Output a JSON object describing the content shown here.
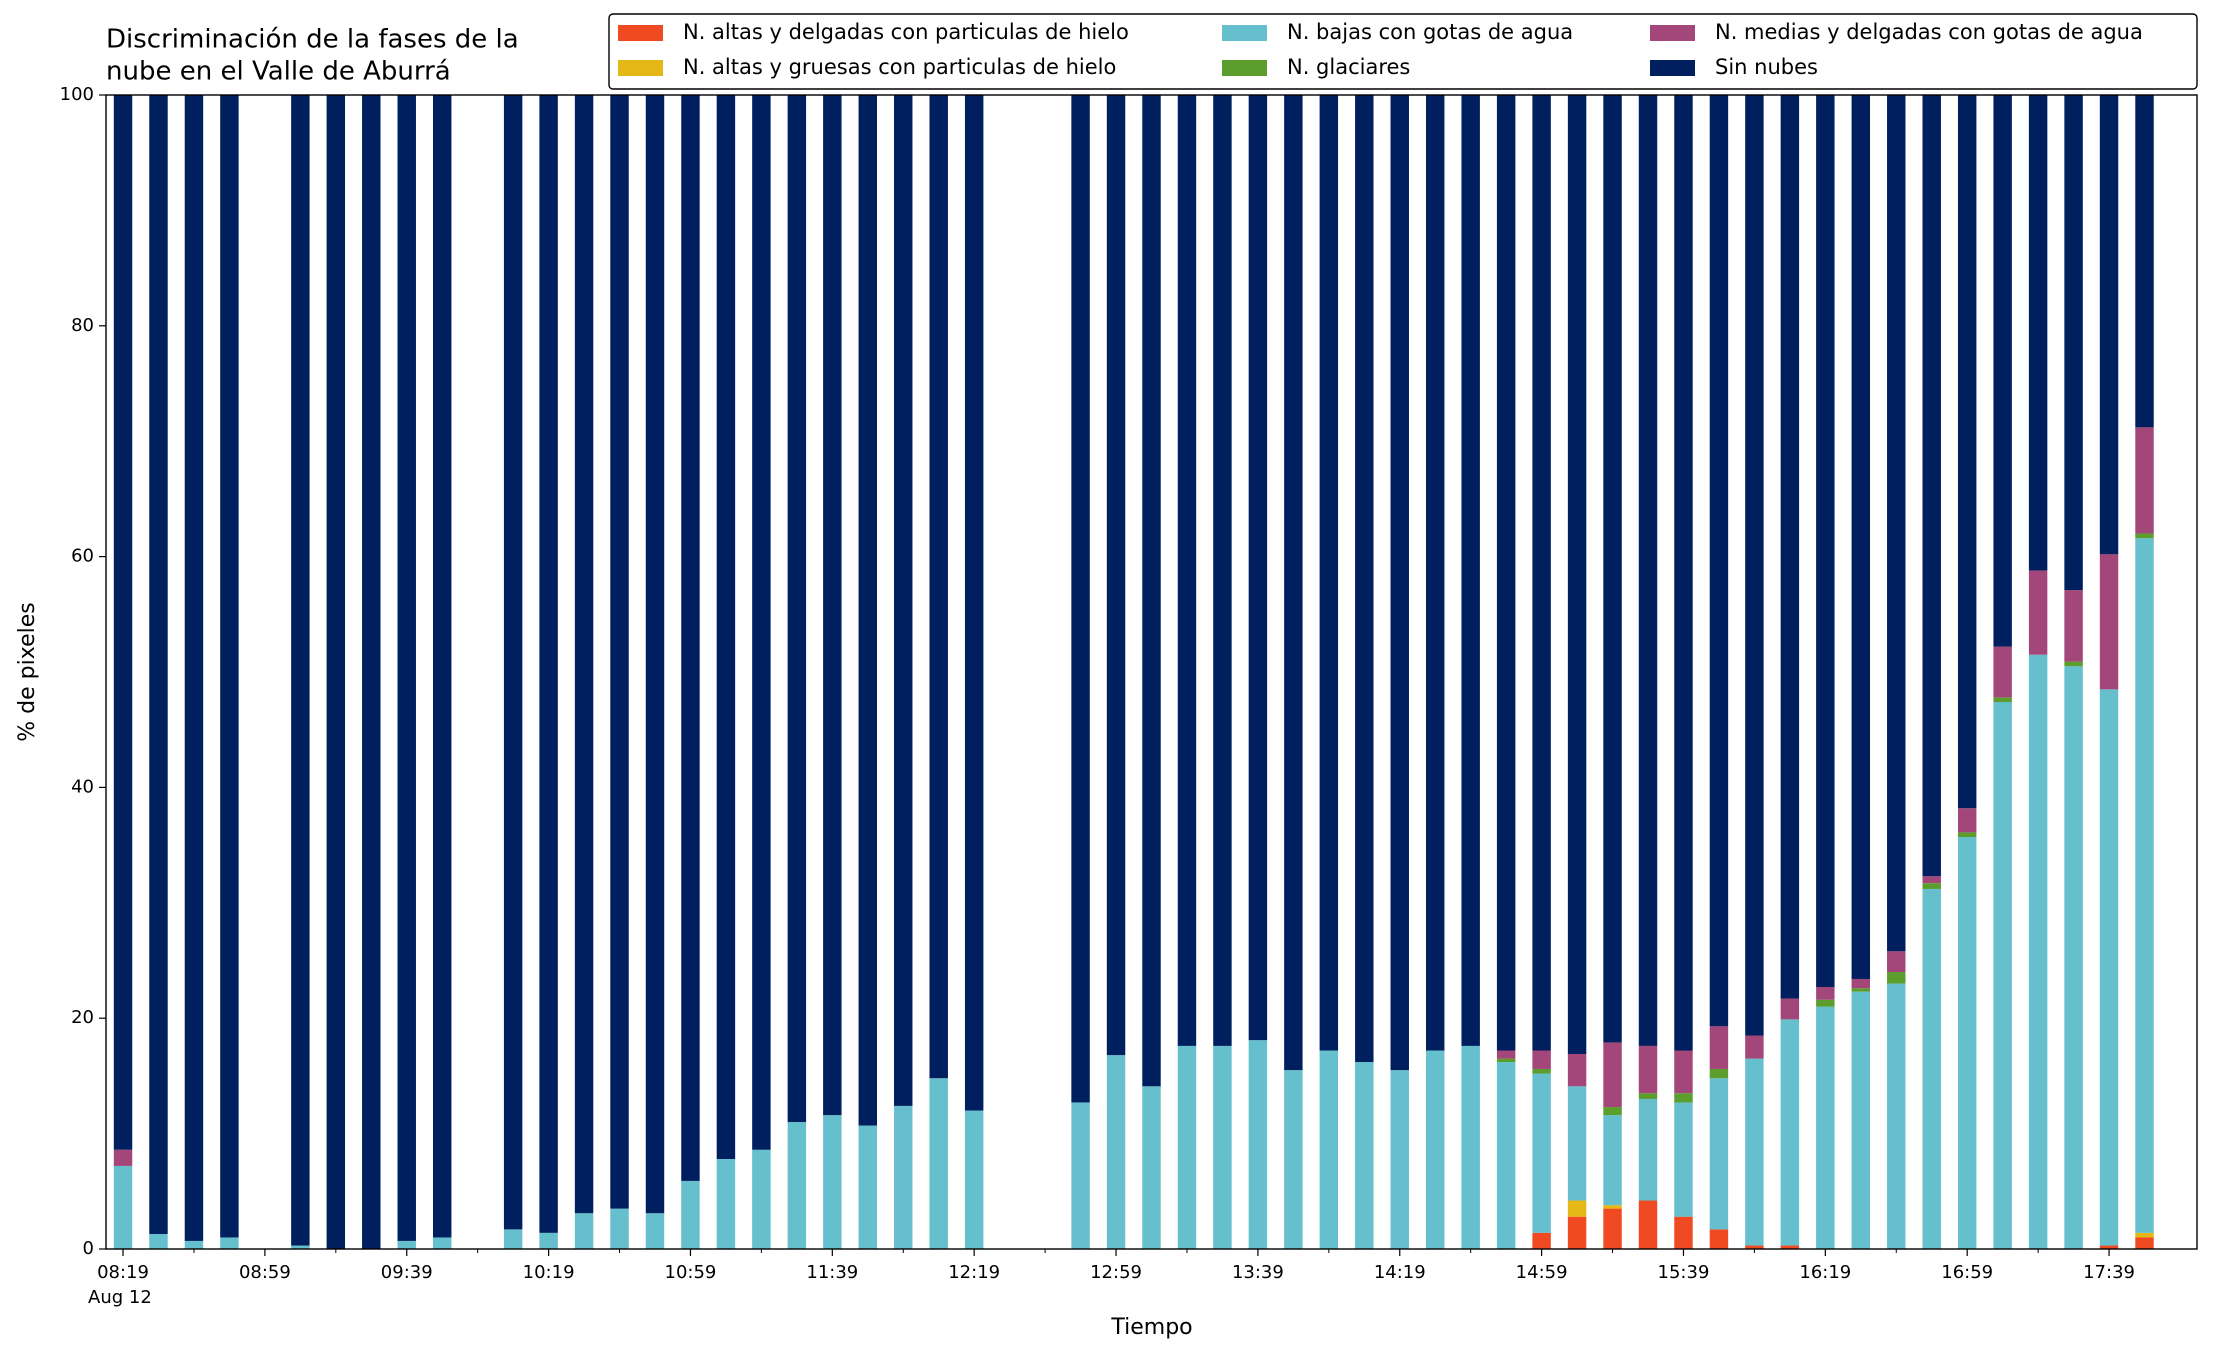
{
  "chart_data": {
    "type": "bar",
    "stacked": true,
    "title": [
      "Discriminación de la fases de la",
      "nube en el Valle de Aburrá"
    ],
    "xlabel": "Tiempo",
    "ylabel": "% de pixeles",
    "date_label": "Aug 12",
    "categories": [
      "08:19",
      null,
      null,
      null,
      "08:59",
      null,
      null,
      null,
      "09:39",
      null,
      null,
      null,
      "10:19",
      null,
      null,
      null,
      "10:59",
      null,
      null,
      null,
      "11:39",
      null,
      null,
      null,
      "12:19",
      null,
      null,
      null,
      "12:59",
      null,
      null,
      null,
      "13:39",
      null,
      null,
      null,
      "14:19",
      null,
      null,
      null,
      "14:59",
      null,
      null,
      null,
      "15:39",
      null,
      null,
      null,
      "16:19",
      null,
      null,
      null,
      "16:59",
      null,
      null,
      null,
      "17:39",
      null
    ],
    "ylim": [
      0,
      100
    ],
    "yticks": [
      0,
      20,
      40,
      60,
      80,
      100
    ],
    "grid": false,
    "legend": "top",
    "series": [
      {
        "name": "N. altas y delgadas con particulas de hielo",
        "color": "#f04a23",
        "values": [
          0,
          0,
          0,
          0,
          null,
          0,
          0,
          0,
          0,
          0,
          null,
          0,
          0,
          0,
          0,
          0,
          0,
          0,
          0,
          0,
          0,
          0,
          0,
          0,
          0,
          null,
          null,
          0,
          0,
          0,
          0,
          0,
          0,
          0,
          0,
          0,
          0,
          0,
          0,
          0,
          1.4,
          2.8,
          3.5,
          4.2,
          2.8,
          1.7,
          0.3,
          0.3,
          0,
          0,
          0,
          0,
          0,
          0,
          0,
          0,
          0.3,
          1.0
        ]
      },
      {
        "name": "N. altas y gruesas con particulas de hielo",
        "color": "#e6b817",
        "values": [
          0,
          0,
          0,
          0,
          null,
          0,
          0,
          0,
          0,
          0,
          null,
          0,
          0,
          0,
          0,
          0,
          0,
          0,
          0,
          0,
          0,
          0,
          0,
          0,
          0,
          null,
          null,
          0,
          0,
          0,
          0,
          0,
          0,
          0,
          0,
          0,
          0,
          0,
          0,
          0,
          0,
          1.4,
          0.3,
          0,
          0,
          0,
          0,
          0,
          0,
          0,
          0,
          0,
          0,
          0,
          0,
          0,
          0,
          0.4
        ]
      },
      {
        "name": "N. bajas con gotas de agua",
        "color": "#66bfcc",
        "values": [
          7.2,
          1.3,
          0.7,
          1.0,
          null,
          0.3,
          0,
          0,
          0.7,
          1.0,
          null,
          1.7,
          1.4,
          3.1,
          3.5,
          3.1,
          5.9,
          7.8,
          8.6,
          11.0,
          11.6,
          10.7,
          12.4,
          14.8,
          12.0,
          null,
          null,
          12.7,
          16.8,
          14.1,
          17.6,
          17.6,
          18.1,
          15.5,
          17.2,
          16.2,
          15.5,
          17.2,
          17.6,
          16.2,
          13.8,
          9.9,
          7.8,
          8.8,
          9.9,
          13.1,
          16.2,
          19.6,
          21.0,
          22.3,
          23.0,
          31.2,
          35.7,
          47.4,
          51.5,
          50.5,
          48.2,
          60.2
        ]
      },
      {
        "name": "N. glaciares",
        "color": "#5c9e2e",
        "values": [
          0,
          0,
          0,
          0,
          null,
          0,
          0,
          0,
          0,
          0,
          null,
          0,
          0,
          0,
          0,
          0,
          0,
          0,
          0,
          0,
          0,
          0,
          0,
          0,
          0,
          null,
          null,
          0,
          0,
          0,
          0,
          0,
          0,
          0,
          0,
          0,
          0,
          0,
          0,
          0.3,
          0.4,
          0,
          0.7,
          0.5,
          0.8,
          0.8,
          0,
          0,
          0.6,
          0.3,
          1.0,
          0.5,
          0.4,
          0.4,
          0,
          0.4,
          0,
          0.4
        ]
      },
      {
        "name": "N. medias y delgadas con gotas de agua",
        "color": "#a3467a",
        "values": [
          1.4,
          0,
          0,
          0,
          null,
          0,
          0,
          0,
          0,
          0,
          null,
          0,
          0,
          0,
          0,
          0,
          0,
          0,
          0,
          0,
          0,
          0,
          0,
          0,
          0,
          null,
          null,
          0,
          0,
          0,
          0,
          0,
          0,
          0,
          0,
          0,
          0,
          0,
          0,
          0.7,
          1.6,
          2.8,
          5.6,
          4.1,
          3.7,
          3.7,
          2.0,
          1.8,
          1.1,
          0.8,
          1.8,
          0.6,
          2.1,
          4.4,
          7.3,
          6.2,
          11.7,
          9.2
        ]
      },
      {
        "name": "Sin nubes",
        "color": "#001f5f",
        "values": [
          91.4,
          98.7,
          99.3,
          99.0,
          null,
          99.7,
          100,
          100,
          99.3,
          99.0,
          null,
          98.3,
          98.6,
          96.9,
          96.5,
          96.9,
          94.1,
          92.2,
          91.4,
          89.0,
          88.4,
          89.3,
          87.6,
          85.2,
          88.0,
          null,
          null,
          87.3,
          83.2,
          85.9,
          82.4,
          82.4,
          81.9,
          84.5,
          82.8,
          83.8,
          84.5,
          82.8,
          82.4,
          82.8,
          82.8,
          83.1,
          82.1,
          82.4,
          82.8,
          80.7,
          81.5,
          78.3,
          77.3,
          76.6,
          74.2,
          67.7,
          61.8,
          47.8,
          41.2,
          42.9,
          39.8,
          28.8
        ]
      }
    ]
  }
}
